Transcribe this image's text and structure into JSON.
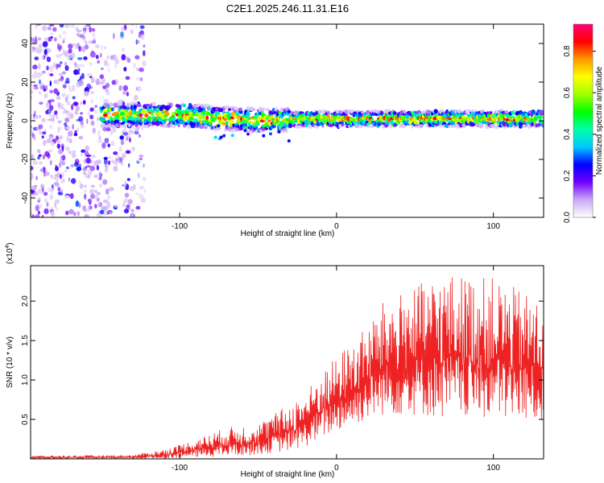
{
  "title": "C2E1.2025.246.11.31.E16",
  "chart_data": [
    {
      "type": "heatmap",
      "title": "C2E1.2025.246.11.31.E16",
      "xlabel": "Height of straight line (km)",
      "ylabel": "Frequency (Hz)",
      "xlim": [
        -195,
        132
      ],
      "ylim": [
        -50,
        50
      ],
      "xticks": [
        -100,
        0,
        100
      ],
      "yticks": [
        -40,
        -20,
        0,
        20,
        40
      ],
      "xtick_labels": [
        "-100",
        "0",
        "100"
      ],
      "ytick_labels": [
        "-40",
        "-20",
        "0",
        "20",
        "40"
      ],
      "noise_region_km": [
        -195,
        -122
      ],
      "signal_band": {
        "start_km": -150,
        "center_hz": [
          {
            "km": -150,
            "hz": 3
          },
          {
            "km": -100,
            "hz": 3
          },
          {
            "km": -70,
            "hz": 1
          },
          {
            "km": -40,
            "hz": 0
          },
          {
            "km": -20,
            "hz": 1
          },
          {
            "km": 0,
            "hz": 1
          },
          {
            "km": 50,
            "hz": 1
          },
          {
            "km": 100,
            "hz": 1
          },
          {
            "km": 132,
            "hz": 1
          }
        ],
        "width_hz": 4
      },
      "colorbar": {
        "label": "Normalized spectral amplitude",
        "range": [
          0,
          0.93
        ],
        "ticks": [
          0.0,
          0.2,
          0.4,
          0.6,
          0.8
        ],
        "tick_labels": [
          "0.0",
          "0.2",
          "0.4",
          "0.6",
          "0.8"
        ],
        "colors": [
          "#ffffff",
          "#c9a8f5",
          "#7000ff",
          "#0000ff",
          "#00c8ff",
          "#00ffaa",
          "#00ff00",
          "#a0ff00",
          "#ffff00",
          "#ff9900",
          "#ff0000",
          "#ff0077"
        ]
      }
    },
    {
      "type": "line",
      "xlabel": "Height of straight line (km)",
      "ylabel": "SNR (10 * v/v)",
      "multiplier_label": "(x10",
      "multiplier_exp": "4",
      "multiplier_close": ")",
      "xlim": [
        -195,
        132
      ],
      "ylim": [
        0,
        2.45
      ],
      "xticks": [
        -100,
        0,
        100
      ],
      "yticks": [
        0.5,
        1.0,
        1.5,
        2.0
      ],
      "xtick_labels": [
        "-100",
        "0",
        "100"
      ],
      "ytick_labels": [
        "0.5",
        "1.0",
        "1.5",
        "2.0"
      ],
      "series": [
        {
          "name": "SNR",
          "color": "#ee2222",
          "envelope": [
            {
              "km": -195,
              "lo": 0.0,
              "hi": 0.04
            },
            {
              "km": -130,
              "lo": 0.0,
              "hi": 0.05
            },
            {
              "km": -110,
              "lo": 0.0,
              "hi": 0.12
            },
            {
              "km": -90,
              "lo": 0.02,
              "hi": 0.25
            },
            {
              "km": -70,
              "lo": 0.03,
              "hi": 0.4
            },
            {
              "km": -50,
              "lo": 0.05,
              "hi": 0.45
            },
            {
              "km": -30,
              "lo": 0.1,
              "hi": 0.7
            },
            {
              "km": -20,
              "lo": 0.15,
              "hi": 0.85
            },
            {
              "km": -10,
              "lo": 0.25,
              "hi": 1.1
            },
            {
              "km": 0,
              "lo": 0.35,
              "hi": 1.3
            },
            {
              "km": 10,
              "lo": 0.4,
              "hi": 1.5
            },
            {
              "km": 20,
              "lo": 0.5,
              "hi": 1.7
            },
            {
              "km": 30,
              "lo": 0.55,
              "hi": 2.0
            },
            {
              "km": 50,
              "lo": 0.55,
              "hi": 2.2
            },
            {
              "km": 70,
              "lo": 0.5,
              "hi": 2.35
            },
            {
              "km": 100,
              "lo": 0.5,
              "hi": 2.3
            },
            {
              "km": 132,
              "lo": 0.45,
              "hi": 2.0
            }
          ]
        }
      ]
    }
  ]
}
